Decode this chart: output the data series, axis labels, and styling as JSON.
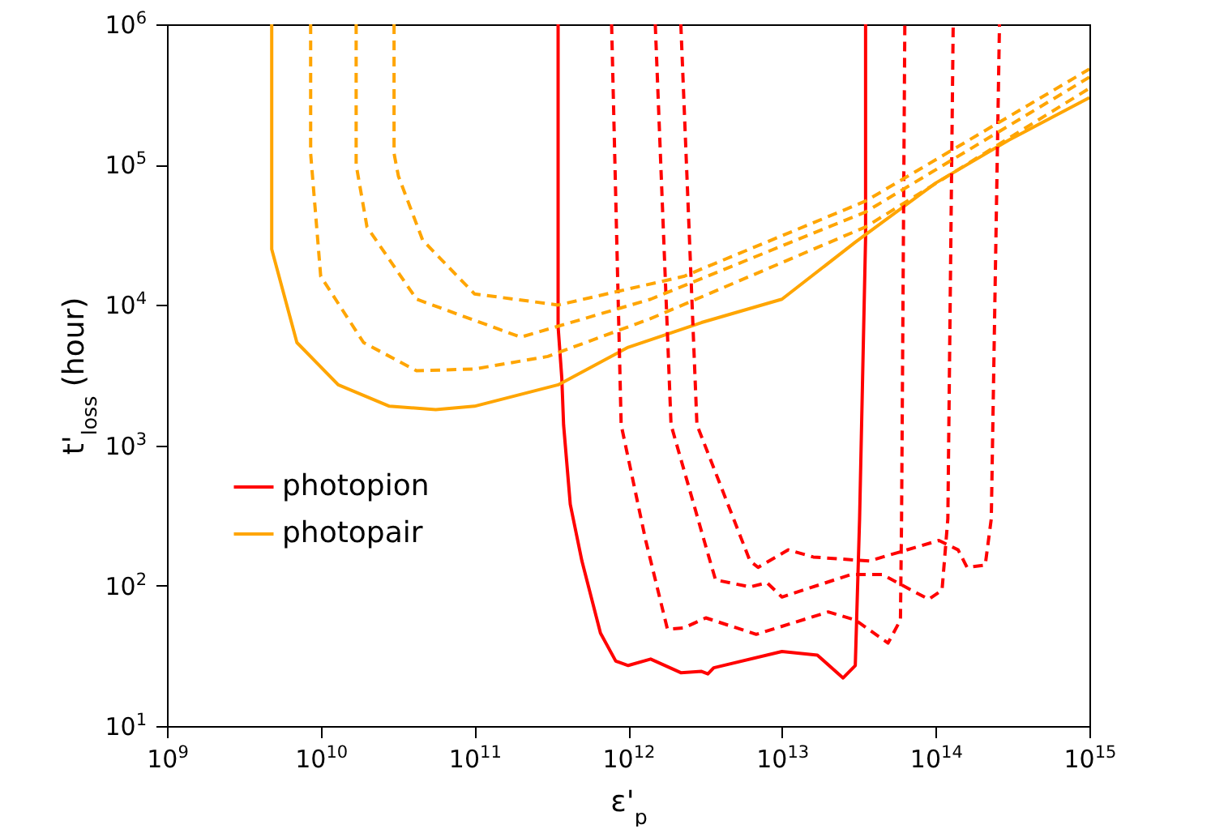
{
  "chart_data": {
    "type": "line",
    "xlabel": "ε'$_{p}$",
    "ylabel": "t'$_{loss}$ (hour)",
    "log": "xy",
    "grid": false,
    "legend": "bottom left",
    "marker": "none",
    "xlim": [
      1000000000.0,
      1000000000000000.0
    ],
    "ylim": [
      10,
      1000000.0
    ],
    "xticks": [
      {
        "value": 1000000000.0,
        "label": "10$^{9}$"
      },
      {
        "value": 10000000000.0,
        "label": "10$^{10}$"
      },
      {
        "value": 100000000000.0,
        "label": "10$^{11}$"
      },
      {
        "value": 1000000000000.0,
        "label": "10$^{12}$"
      },
      {
        "value": 10000000000000.0,
        "label": "10$^{13}$"
      },
      {
        "value": 100000000000000.0,
        "label": "10$^{14}$"
      },
      {
        "value": 1000000000000000.0,
        "label": "10$^{15}$"
      }
    ],
    "yticks": [
      {
        "value": 10,
        "label": "10$^{1}$"
      },
      {
        "value": 100,
        "label": "10$^{2}$"
      },
      {
        "value": 1000,
        "label": "10$^{3}$"
      },
      {
        "value": 10000,
        "label": "10$^{4}$"
      },
      {
        "value": 100000,
        "label": "10$^{5}$"
      },
      {
        "value": 1000000,
        "label": "10$^{6}$"
      }
    ],
    "series": [
      {
        "name": "photopion",
        "color": "#ff0000",
        "line_style": "solid",
        "x": [
          350000000000.0,
          350000000000.0,
          370000000000.0,
          380000000000.0,
          420000000000.0,
          500000000000.0,
          660000000000.0,
          830000000000.0,
          1000000000000.0,
          1400000000000.0,
          2200000000000.0,
          3000000000000.0,
          3300000000000.0,
          3600000000000.0,
          10000000000000.0,
          17000000000000.0,
          25000000000000.0,
          30000000000000.0,
          32000000000000.0,
          35000000000000.0,
          35000000000000.0
        ],
        "values": [
          1000000.0,
          7000,
          3000,
          1400,
          380,
          150,
          46,
          29,
          27,
          30,
          24,
          24.5,
          23.5,
          26,
          34,
          32,
          22,
          27,
          300,
          30000,
          1000000.0
        ]
      },
      {
        "name": "photopair",
        "color": "#ffa500",
        "line_style": "solid",
        "x": [
          4800000000.0,
          4800000000.0,
          7000000000.0,
          13000000000.0,
          28000000000.0,
          56000000000.0,
          100000000000.0,
          350000000000.0,
          1000000000000.0,
          3000000000000.0,
          10000000000000.0,
          30000000000000.0,
          100000000000000.0,
          300000000000000.0,
          1000000000000000.0
        ],
        "values": [
          1000000.0,
          25000,
          5400,
          2700,
          1900,
          1800,
          1900,
          2700,
          5000,
          7500,
          11000,
          28000,
          74000,
          150000,
          300000
        ]
      },
      {
        "color": "#ff0000",
        "line_style": "dashed",
        "x": [
          780000000000.0,
          900000000000.0,
          1300000000000.0,
          1800000000000.0,
          2300000000000.0,
          3200000000000.0,
          6800000000000.0,
          20000000000000.0,
          30000000000000.0,
          49000000000000.0,
          59000000000000.0,
          60000000000000.0,
          63000000000000.0
        ],
        "values": [
          1000000.0,
          1400,
          210,
          49,
          50,
          59,
          45,
          65,
          57,
          39,
          57,
          300,
          1000000.0
        ]
      },
      {
        "color": "#ff0000",
        "line_style": "dashed",
        "x": [
          1500000000000.0,
          1900000000000.0,
          3200000000000.0,
          3700000000000.0,
          6200000000000.0,
          8000000000000.0,
          10000000000000.0,
          28000000000000.0,
          45000000000000.0,
          90000000000000.0,
          110000000000000.0,
          120000000000000.0,
          130000000000000.0
        ],
        "values": [
          1000000.0,
          1400,
          190,
          110,
          98,
          105,
          83,
          120,
          120,
          80,
          93,
          300,
          1000000.0
        ]
      },
      {
        "color": "#ff0000",
        "line_style": "dashed",
        "x": [
          2200000000000.0,
          2800000000000.0,
          6200000000000.0,
          7000000000000.0,
          11000000000000.0,
          16000000000000.0,
          37000000000000.0,
          105000000000000.0,
          140000000000000.0,
          160000000000000.0,
          210000000000000.0,
          230000000000000.0,
          260000000000000.0
        ],
        "values": [
          1000000.0,
          1400,
          150,
          135,
          180,
          160,
          150,
          210,
          180,
          135,
          140,
          300,
          1000000.0
        ]
      },
      {
        "color": "#ffa500",
        "line_style": "dashed",
        "x": [
          8600000000.0,
          8600000000.0,
          10000000000.0,
          19000000000.0,
          42000000000.0,
          100000000000.0,
          300000000000.0,
          1400000000000.0,
          35000000000000.0,
          1000000000000000.0
        ],
        "values": [
          1000000.0,
          120000,
          16000,
          5400,
          3400,
          3500,
          4300,
          8000,
          36000,
          350000
        ]
      },
      {
        "color": "#ffa500",
        "line_style": "dashed",
        "x": [
          17000000000.0,
          17000000000.0,
          20000000000.0,
          42000000000.0,
          200000000000.0,
          1400000000000.0,
          35000000000000.0,
          1000000000000000.0
        ],
        "values": [
          1000000.0,
          100000,
          36000,
          11000,
          5900,
          11000,
          46000,
          420000
        ]
      },
      {
        "color": "#ffa500",
        "line_style": "dashed",
        "x": [
          30000000000.0,
          30000000000.0,
          32000000000.0,
          46000000000.0,
          100000000000.0,
          350000000000.0,
          2300000000000.0,
          35000000000000.0,
          1000000000000000.0
        ],
        "values": [
          1000000.0,
          120000,
          83000,
          29000,
          12000,
          10000,
          16000,
          55000,
          480000
        ]
      }
    ]
  }
}
